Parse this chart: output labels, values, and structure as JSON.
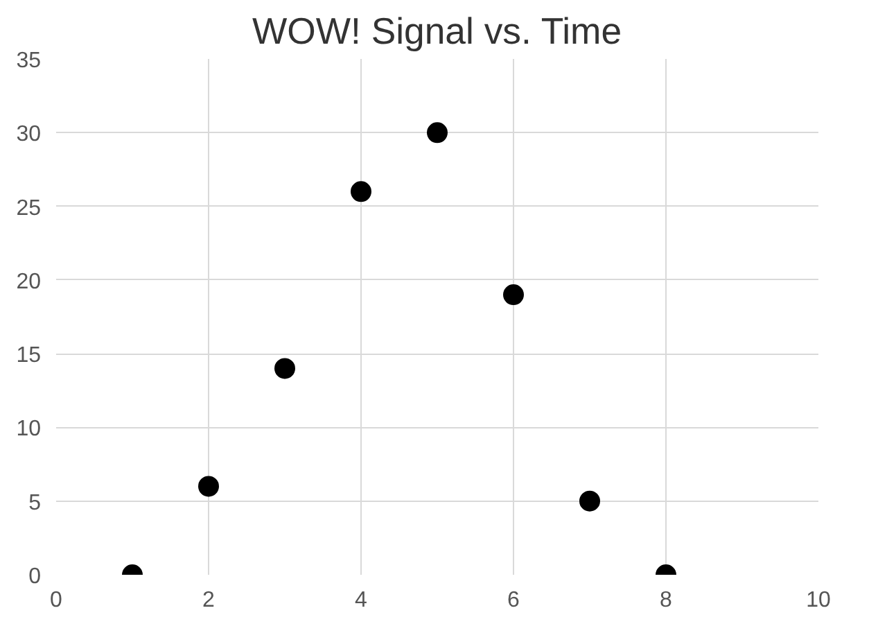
{
  "chart_data": {
    "type": "scatter",
    "title": "WOW! Signal vs. Time",
    "x": [
      1,
      2,
      3,
      4,
      5,
      6,
      7,
      8
    ],
    "series": [
      {
        "color": "#000000",
        "values": [
          0,
          6,
          14,
          26,
          30,
          19,
          5,
          0
        ]
      }
    ],
    "xlim": [
      0,
      10
    ],
    "xticks": [
      0,
      2,
      4,
      6,
      8,
      10
    ],
    "ylim": [
      0,
      35
    ],
    "yticks": [
      0,
      5,
      10,
      15,
      20,
      25,
      30,
      35
    ],
    "grid": true,
    "marker": "circle"
  }
}
